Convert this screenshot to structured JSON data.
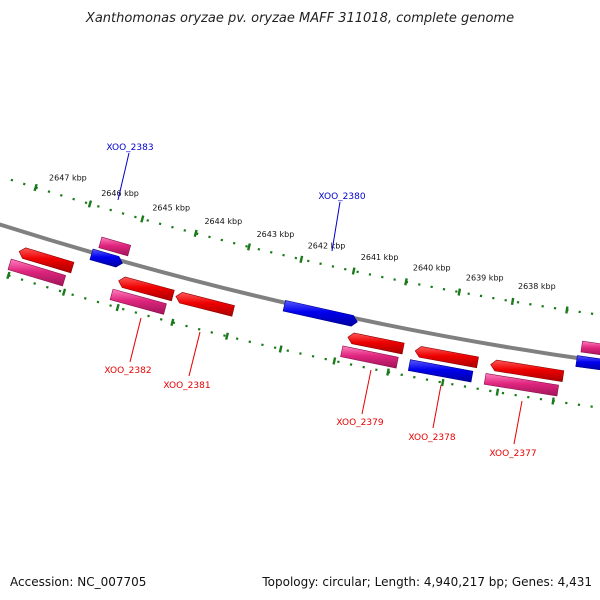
{
  "title": "Xanthomonas oryzae pv. oryzae MAFF 311018, complete genome",
  "footer": {
    "accession": "Accession: NC_007705",
    "summary": "Topology: circular; Length: 4,940,217 bp; Genes: 4,431"
  },
  "colors": {
    "backbone": "#808080",
    "dots": "#1a7a1a",
    "cds_red": "#e60000",
    "cds_pink": "#e0267f",
    "cds_blue": "#0000e6",
    "label_red": "#e60000",
    "label_blue": "#0000cc"
  },
  "ticks": [
    "2647 kbp",
    "2646 kbp",
    "2645 kbp",
    "2644 kbp",
    "2643 kbp",
    "2642 kbp",
    "2641 kbp",
    "2640 kbp",
    "2639 kbp",
    "2638 kbp"
  ],
  "genes": [
    {
      "label": "XOO_2383",
      "color": "blue"
    },
    {
      "label": "XOO_2380",
      "color": "blue"
    },
    {
      "label": "XOO_2382",
      "color": "red"
    },
    {
      "label": "XOO_2381",
      "color": "red"
    },
    {
      "label": "XOO_2379",
      "color": "red"
    },
    {
      "label": "XOO_2378",
      "color": "red"
    },
    {
      "label": "XOO_2377",
      "color": "red"
    }
  ]
}
